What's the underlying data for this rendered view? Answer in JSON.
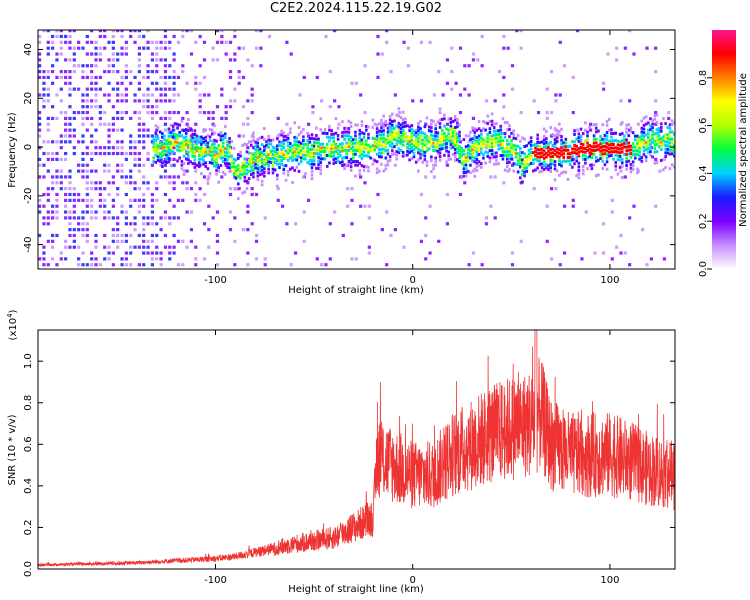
{
  "title": "C2E2.2024.115.22.19.G02",
  "chart_data": [
    {
      "type": "heatmap",
      "xlabel": "Height of straight line (km)",
      "ylabel": "Frequency (Hz)",
      "xlim": [
        -190,
        133
      ],
      "ylim": [
        -50,
        48
      ],
      "xticks": [
        -100,
        0,
        100
      ],
      "yticks": [
        -40,
        -20,
        0,
        20,
        40
      ],
      "colorbar": {
        "label": "Normalized spectral amplitude",
        "range": [
          0,
          1
        ],
        "ticks": [
          "0.0",
          "0.2",
          "0.4",
          "0.6",
          "0.8"
        ],
        "colors": [
          "#ffffff",
          "#c68cff",
          "#7a00ff",
          "#1a1aff",
          "#00d0ff",
          "#00ff40",
          "#b0ff00",
          "#ffff00",
          "#ff8000",
          "#ff0000",
          "#ff1493"
        ]
      },
      "ridge": {
        "x": [
          -130,
          -120,
          -110,
          -100,
          -95,
          -90,
          -80,
          -70,
          -60,
          -50,
          -40,
          -30,
          -20,
          -15,
          -10,
          0,
          10,
          20,
          23,
          25,
          30,
          40,
          50,
          55,
          60,
          70,
          80,
          90,
          100,
          110,
          120,
          133
        ],
        "y": [
          0,
          2,
          0,
          -3,
          1,
          -10,
          -4,
          -3,
          -1,
          -1,
          0,
          0,
          1,
          2,
          5,
          3,
          2,
          6,
          0,
          -5,
          0,
          3,
          0,
          -7,
          -2,
          -2,
          -1,
          0,
          0,
          0,
          4,
          3
        ]
      }
    },
    {
      "type": "line",
      "xlabel": "Height of straight line (km)",
      "ylabel": "SNR (10 * v/v)",
      "multiplier": "(x10",
      "multiplier_exp": "4",
      "multiplier_close": ")",
      "xlim": [
        -190,
        133
      ],
      "ylim": [
        0,
        1.15
      ],
      "xticks": [
        -100,
        0,
        100
      ],
      "yticks": [
        "0.0",
        "0.2",
        "0.4",
        "0.6",
        "0.8",
        "1.0"
      ],
      "color": "#ee3333",
      "envelope": {
        "x": [
          -190,
          -160,
          -140,
          -120,
          -100,
          -90,
          -80,
          -70,
          -60,
          -40,
          -30,
          -20,
          -18,
          -10,
          0,
          10,
          20,
          30,
          40,
          50,
          60,
          65,
          70,
          80,
          90,
          100,
          110,
          120,
          133
        ],
        "y": [
          0.02,
          0.025,
          0.03,
          0.04,
          0.05,
          0.06,
          0.08,
          0.1,
          0.12,
          0.15,
          0.2,
          0.25,
          0.55,
          0.5,
          0.45,
          0.45,
          0.55,
          0.6,
          0.65,
          0.68,
          0.7,
          0.75,
          0.6,
          0.55,
          0.55,
          0.55,
          0.52,
          0.48,
          0.45
        ]
      }
    }
  ]
}
